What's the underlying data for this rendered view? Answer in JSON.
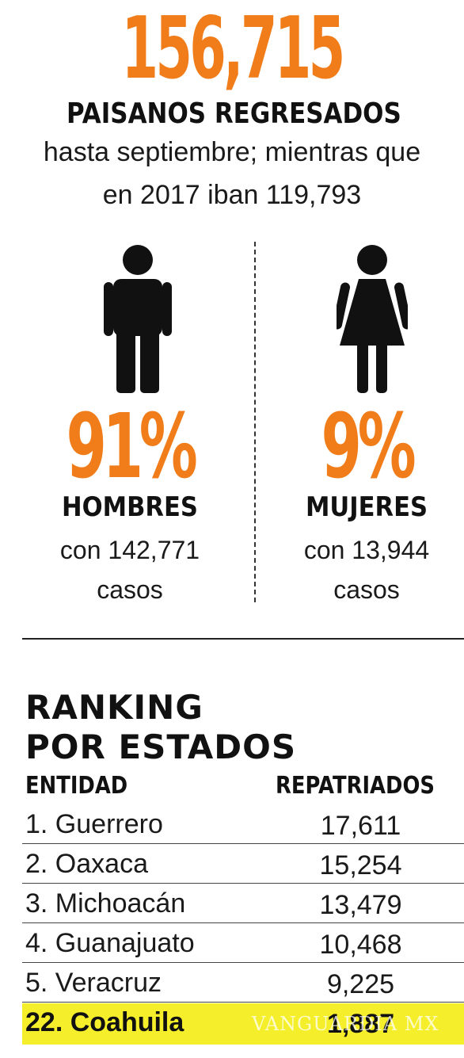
{
  "headline": {
    "big_number": "156,715",
    "title": "PAISANOS REGRESADOS",
    "line1": "hasta septiembre; mientras que",
    "line2": "en 2017 iban 119,793"
  },
  "men": {
    "percent": "91%",
    "label": "HOMBRES",
    "cases_line1": "con 142,771",
    "cases_line2": "casos",
    "icon": "man-icon"
  },
  "women": {
    "percent": "9%",
    "label": "MUJERES",
    "cases_line1": "con 13,944",
    "cases_line2": "casos",
    "icon": "woman-icon"
  },
  "colors": {
    "accent": "#f07d1a",
    "highlight": "#f4ef2a",
    "text": "#111111"
  },
  "ranking": {
    "title_line1": "RANKING",
    "title_line2": "POR ESTADOS",
    "col_entity": "ENTIDAD",
    "col_value": "REPATRIADOS",
    "rows": [
      {
        "name": "1. Guerrero",
        "value": "17,611"
      },
      {
        "name": "2. Oaxaca",
        "value": "15,254"
      },
      {
        "name": "3. Michoacán",
        "value": "13,479"
      },
      {
        "name": "4. Guanajuato",
        "value": "10,468"
      },
      {
        "name": "5. Veracruz",
        "value": "9,225"
      }
    ],
    "highlight_row": {
      "name": "22. Coahuila",
      "value": "1,887"
    }
  },
  "watermark": "VANGUARDIA MX"
}
